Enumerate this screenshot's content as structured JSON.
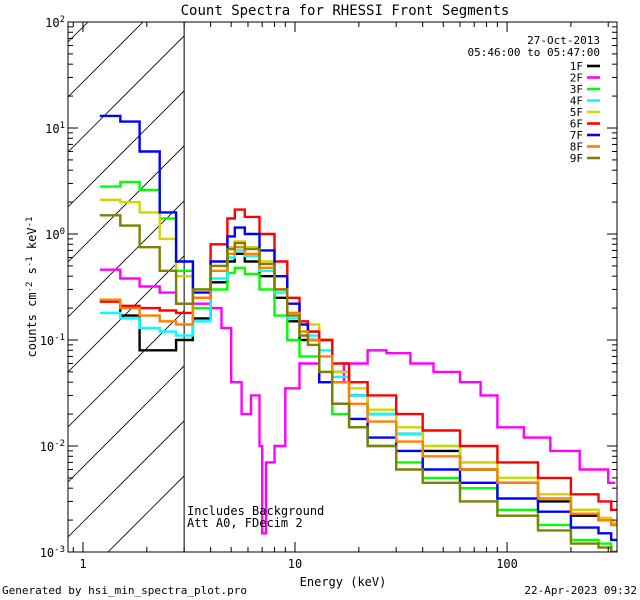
{
  "chart_data": {
    "type": "line",
    "title": "Count Spectra for RHESSI Front Segments",
    "xlabel": "Energy (keV)",
    "ylabel": "counts cm^-2 s^-1 keV^-1",
    "xlim": [
      0.85,
      330
    ],
    "ylim": [
      0.001,
      100
    ],
    "xscale": "log",
    "yscale": "log",
    "x_tick_labels": [
      {
        "value": 1,
        "label": "1"
      },
      {
        "value": 10,
        "label": "10"
      },
      {
        "value": 100,
        "label": "100"
      }
    ],
    "y_tick_labels": [
      {
        "value": 100,
        "base": "10",
        "exp": "2"
      },
      {
        "value": 10,
        "base": "10",
        "exp": "1"
      },
      {
        "value": 1,
        "base": "10",
        "exp": "0"
      },
      {
        "value": 0.1,
        "base": "10",
        "exp": "-1"
      },
      {
        "value": 0.01,
        "base": "10",
        "exp": "-2"
      },
      {
        "value": 0.001,
        "base": "10",
        "exp": "-3"
      }
    ],
    "excluded_region": {
      "x0": 0.85,
      "x1": 3.0,
      "note": "hatched region below 3 keV"
    },
    "date_label": "27-Oct-2013",
    "time_label": "05:46:00 to 05:47:00",
    "annotations": [
      "Includes Background",
      "Att A0, FDecim 2"
    ],
    "legend_position": "top-right",
    "series": [
      {
        "name": "1F",
        "color": "#000000",
        "points": [
          [
            1.2,
            0.24
          ],
          [
            1.5,
            0.17
          ],
          [
            1.85,
            0.08
          ],
          [
            2.3,
            0.08
          ],
          [
            2.75,
            0.1
          ],
          [
            3.3,
            0.16
          ],
          [
            4.0,
            0.35
          ],
          [
            4.8,
            0.55
          ],
          [
            5.2,
            0.65
          ],
          [
            5.8,
            0.55
          ],
          [
            6.8,
            0.4
          ],
          [
            8.0,
            0.25
          ],
          [
            9.2,
            0.15
          ],
          [
            10.5,
            0.1
          ],
          [
            11.5,
            0.12
          ],
          [
            13.0,
            0.1
          ],
          [
            15.0,
            0.05
          ],
          [
            18.0,
            0.03
          ],
          [
            22.0,
            0.02
          ],
          [
            30.0,
            0.013
          ],
          [
            40.0,
            0.009
          ],
          [
            60.0,
            0.006
          ],
          [
            90.0,
            0.0045
          ],
          [
            140.0,
            0.003
          ],
          [
            200.0,
            0.0022
          ],
          [
            270.0,
            0.002
          ],
          [
            310.0,
            0.0018
          ]
        ]
      },
      {
        "name": "2F",
        "color": "#ff00ff",
        "points": [
          [
            1.2,
            0.46
          ],
          [
            1.5,
            0.38
          ],
          [
            1.85,
            0.32
          ],
          [
            2.3,
            0.28
          ],
          [
            2.75,
            0.22
          ],
          [
            3.3,
            0.22
          ],
          [
            4.0,
            0.2
          ],
          [
            4.5,
            0.13
          ],
          [
            5.0,
            0.04
          ],
          [
            5.6,
            0.02
          ],
          [
            6.2,
            0.03
          ],
          [
            6.8,
            0.01
          ],
          [
            7.0,
            0.0015
          ],
          [
            7.3,
            0.007
          ],
          [
            8.0,
            0.01
          ],
          [
            9.0,
            0.035
          ],
          [
            10.5,
            0.06
          ],
          [
            13.0,
            0.04
          ],
          [
            17.0,
            0.06
          ],
          [
            22.0,
            0.08
          ],
          [
            27.0,
            0.075
          ],
          [
            35.0,
            0.06
          ],
          [
            45.0,
            0.05
          ],
          [
            60.0,
            0.04
          ],
          [
            75.0,
            0.03
          ],
          [
            90.0,
            0.015
          ],
          [
            120.0,
            0.012
          ],
          [
            160.0,
            0.009
          ],
          [
            220.0,
            0.006
          ],
          [
            300.0,
            0.0045
          ]
        ]
      },
      {
        "name": "3F",
        "color": "#00ff00",
        "points": [
          [
            1.2,
            2.8
          ],
          [
            1.5,
            3.1
          ],
          [
            1.85,
            2.6
          ],
          [
            2.3,
            1.4
          ],
          [
            2.75,
            0.45
          ],
          [
            3.3,
            0.2
          ],
          [
            4.0,
            0.3
          ],
          [
            4.8,
            0.43
          ],
          [
            5.2,
            0.48
          ],
          [
            5.8,
            0.42
          ],
          [
            6.8,
            0.3
          ],
          [
            8.0,
            0.17
          ],
          [
            9.2,
            0.1
          ],
          [
            10.5,
            0.07
          ],
          [
            11.5,
            0.07
          ],
          [
            13.0,
            0.05
          ],
          [
            15.0,
            0.02
          ],
          [
            18.0,
            0.015
          ],
          [
            22.0,
            0.01
          ],
          [
            30.0,
            0.007
          ],
          [
            40.0,
            0.005
          ],
          [
            60.0,
            0.004
          ],
          [
            90.0,
            0.0025
          ],
          [
            140.0,
            0.0018
          ],
          [
            200.0,
            0.0013
          ],
          [
            270.0,
            0.0012
          ],
          [
            310.0,
            0.001
          ]
        ]
      },
      {
        "name": "4F",
        "color": "#00ffff",
        "points": [
          [
            1.2,
            0.18
          ],
          [
            1.5,
            0.16
          ],
          [
            1.85,
            0.13
          ],
          [
            2.3,
            0.12
          ],
          [
            2.75,
            0.11
          ],
          [
            3.3,
            0.15
          ],
          [
            4.0,
            0.38
          ],
          [
            4.8,
            0.6
          ],
          [
            5.2,
            0.7
          ],
          [
            5.8,
            0.62
          ],
          [
            6.8,
            0.45
          ],
          [
            8.0,
            0.28
          ],
          [
            9.2,
            0.16
          ],
          [
            10.5,
            0.11
          ],
          [
            11.5,
            0.11
          ],
          [
            13.0,
            0.08
          ],
          [
            15.0,
            0.045
          ],
          [
            18.0,
            0.03
          ],
          [
            22.0,
            0.02
          ],
          [
            30.0,
            0.013
          ],
          [
            40.0,
            0.01
          ],
          [
            60.0,
            0.007
          ],
          [
            90.0,
            0.005
          ],
          [
            140.0,
            0.0035
          ],
          [
            200.0,
            0.0025
          ],
          [
            270.0,
            0.002
          ],
          [
            310.0,
            0.0018
          ]
        ]
      },
      {
        "name": "5F",
        "color": "#d4d400",
        "points": [
          [
            1.2,
            2.1
          ],
          [
            1.5,
            2.0
          ],
          [
            1.85,
            1.6
          ],
          [
            2.3,
            0.9
          ],
          [
            2.75,
            0.4
          ],
          [
            3.3,
            0.3
          ],
          [
            4.0,
            0.5
          ],
          [
            4.8,
            0.75
          ],
          [
            5.2,
            0.85
          ],
          [
            5.8,
            0.75
          ],
          [
            6.8,
            0.55
          ],
          [
            8.0,
            0.3
          ],
          [
            9.2,
            0.18
          ],
          [
            10.5,
            0.12
          ],
          [
            11.5,
            0.14
          ],
          [
            13.0,
            0.1
          ],
          [
            15.0,
            0.05
          ],
          [
            18.0,
            0.035
          ],
          [
            22.0,
            0.022
          ],
          [
            30.0,
            0.015
          ],
          [
            40.0,
            0.01
          ],
          [
            60.0,
            0.007
          ],
          [
            90.0,
            0.005
          ],
          [
            140.0,
            0.0035
          ],
          [
            200.0,
            0.0025
          ],
          [
            270.0,
            0.0021
          ],
          [
            310.0,
            0.0019
          ]
        ]
      },
      {
        "name": "6F",
        "color": "#ff0000",
        "points": [
          [
            1.2,
            0.23
          ],
          [
            1.5,
            0.21
          ],
          [
            1.85,
            0.2
          ],
          [
            2.3,
            0.19
          ],
          [
            2.75,
            0.18
          ],
          [
            3.3,
            0.25
          ],
          [
            4.0,
            0.8
          ],
          [
            4.8,
            1.4
          ],
          [
            5.2,
            1.7
          ],
          [
            5.8,
            1.45
          ],
          [
            6.8,
            1.0
          ],
          [
            8.0,
            0.55
          ],
          [
            9.2,
            0.25
          ],
          [
            10.5,
            0.15
          ],
          [
            11.5,
            0.12
          ],
          [
            13.0,
            0.1
          ],
          [
            15.0,
            0.06
          ],
          [
            18.0,
            0.04
          ],
          [
            22.0,
            0.03
          ],
          [
            30.0,
            0.02
          ],
          [
            40.0,
            0.014
          ],
          [
            60.0,
            0.01
          ],
          [
            90.0,
            0.007
          ],
          [
            140.0,
            0.005
          ],
          [
            200.0,
            0.0035
          ],
          [
            270.0,
            0.003
          ],
          [
            310.0,
            0.0025
          ]
        ]
      },
      {
        "name": "7F",
        "color": "#0000ff",
        "points": [
          [
            1.2,
            13.0
          ],
          [
            1.5,
            11.5
          ],
          [
            1.85,
            6.0
          ],
          [
            2.3,
            1.6
          ],
          [
            2.75,
            0.55
          ],
          [
            3.3,
            0.28
          ],
          [
            4.0,
            0.55
          ],
          [
            4.8,
            0.95
          ],
          [
            5.2,
            1.15
          ],
          [
            5.8,
            1.0
          ],
          [
            6.8,
            0.7
          ],
          [
            8.0,
            0.4
          ],
          [
            9.2,
            0.22
          ],
          [
            10.5,
            0.14
          ],
          [
            11.5,
            0.1
          ],
          [
            13.0,
            0.04
          ],
          [
            15.0,
            0.025
          ],
          [
            18.0,
            0.018
          ],
          [
            22.0,
            0.012
          ],
          [
            30.0,
            0.009
          ],
          [
            40.0,
            0.006
          ],
          [
            60.0,
            0.0045
          ],
          [
            90.0,
            0.0032
          ],
          [
            140.0,
            0.0024
          ],
          [
            200.0,
            0.0017
          ],
          [
            270.0,
            0.0015
          ],
          [
            310.0,
            0.0013
          ]
        ]
      },
      {
        "name": "8F",
        "color": "#ff8000",
        "points": [
          [
            1.2,
            0.24
          ],
          [
            1.5,
            0.2
          ],
          [
            1.85,
            0.17
          ],
          [
            2.3,
            0.15
          ],
          [
            2.75,
            0.14
          ],
          [
            3.3,
            0.25
          ],
          [
            4.0,
            0.45
          ],
          [
            4.8,
            0.65
          ],
          [
            5.2,
            0.75
          ],
          [
            5.8,
            0.65
          ],
          [
            6.8,
            0.48
          ],
          [
            8.0,
            0.3
          ],
          [
            9.2,
            0.18
          ],
          [
            10.5,
            0.12
          ],
          [
            11.5,
            0.1
          ],
          [
            13.0,
            0.07
          ],
          [
            15.0,
            0.04
          ],
          [
            18.0,
            0.025
          ],
          [
            22.0,
            0.017
          ],
          [
            30.0,
            0.011
          ],
          [
            40.0,
            0.008
          ],
          [
            60.0,
            0.006
          ],
          [
            90.0,
            0.0045
          ],
          [
            140.0,
            0.0032
          ],
          [
            200.0,
            0.0023
          ],
          [
            270.0,
            0.002
          ],
          [
            310.0,
            0.0018
          ]
        ]
      },
      {
        "name": "9F",
        "color": "#7f7f00",
        "points": [
          [
            1.2,
            1.5
          ],
          [
            1.5,
            1.2
          ],
          [
            1.85,
            0.75
          ],
          [
            2.3,
            0.45
          ],
          [
            2.75,
            0.22
          ],
          [
            3.3,
            0.3
          ],
          [
            4.0,
            0.5
          ],
          [
            4.8,
            0.72
          ],
          [
            5.2,
            0.82
          ],
          [
            5.8,
            0.72
          ],
          [
            6.8,
            0.52
          ],
          [
            8.0,
            0.3
          ],
          [
            9.2,
            0.17
          ],
          [
            10.5,
            0.11
          ],
          [
            11.5,
            0.09
          ],
          [
            13.0,
            0.05
          ],
          [
            15.0,
            0.025
          ],
          [
            18.0,
            0.015
          ],
          [
            22.0,
            0.01
          ],
          [
            30.0,
            0.006
          ],
          [
            40.0,
            0.0045
          ],
          [
            60.0,
            0.003
          ],
          [
            90.0,
            0.0022
          ],
          [
            140.0,
            0.0016
          ],
          [
            200.0,
            0.0012
          ],
          [
            270.0,
            0.0011
          ],
          [
            310.0,
            0.001
          ]
        ]
      }
    ]
  },
  "footer": {
    "generated_by": "Generated by hsi_min_spectra_plot.pro",
    "timestamp": "22-Apr-2023 09:32"
  }
}
